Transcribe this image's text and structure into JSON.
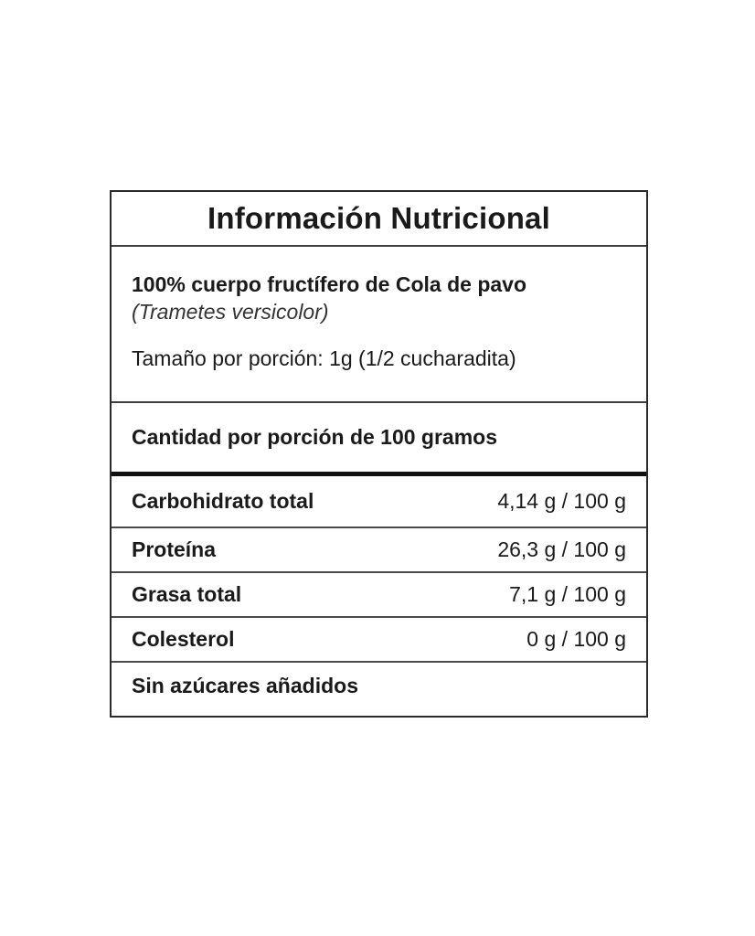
{
  "label": {
    "title": "Información Nutricional",
    "ingredient": "100% cuerpo fructífero de Cola de pavo",
    "scientific_name": "(Trametes versicolor)",
    "serving_size": "Tamaño por porción: 1g (1/2 cucharadita)",
    "amount_header": "Cantidad por porción de 100 gramos",
    "rows": [
      {
        "name": "Carbohidrato total",
        "value": "4,14 g / 100 g"
      },
      {
        "name": "Proteína",
        "value": "26,3 g / 100 g"
      },
      {
        "name": "Grasa total",
        "value": "7,1 g / 100 g"
      },
      {
        "name": "Colesterol",
        "value": "0 g / 100 g"
      }
    ],
    "footer": "Sin azúcares añadidos",
    "colors": {
      "background": "#ffffff",
      "text": "#1a1a1a",
      "border": "#2a2a2a",
      "thin_divider": "#4a4a4a",
      "thick_divider": "#111111"
    }
  }
}
